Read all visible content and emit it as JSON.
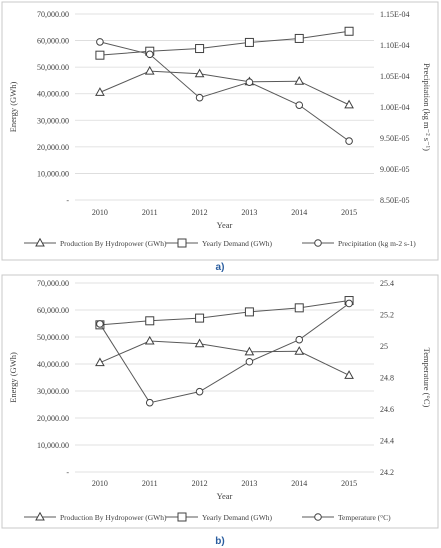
{
  "chart_data": [
    {
      "type": "line",
      "panel_label": "a)",
      "x": [
        "2010",
        "2011",
        "2012",
        "2013",
        "2014",
        "2015"
      ],
      "xlabel": "Year",
      "ylabel_left": "Energy (GWh)",
      "ylabel_right": "Precipitation (kg m⁻² s⁻¹)",
      "ylim_left": [
        0,
        70000
      ],
      "yticks_left": [
        "-",
        "10,000.00",
        "20,000.00",
        "30,000.00",
        "40,000.00",
        "50,000.00",
        "60,000.00",
        "70,000.00"
      ],
      "ylim_right": [
        8.5e-05,
        0.000115
      ],
      "yticks_right": [
        "8.50E-05",
        "9.00E-05",
        "9.50E-05",
        "1.00E-04",
        "1.05E-04",
        "1.10E-04",
        "1.15E-04"
      ],
      "grid": true,
      "legend_position": "bottom",
      "series": [
        {
          "name": "Production By Hydropower (GWh)",
          "marker": "triangle",
          "axis": "left",
          "values": [
            40500,
            48500,
            47500,
            44500,
            44700,
            35800
          ]
        },
        {
          "name": "Yearly Demand (GWh)",
          "marker": "square",
          "axis": "left",
          "values": [
            54500,
            56000,
            57000,
            59300,
            60800,
            63500
          ]
        },
        {
          "name": "Precipitation (kg m-2 s-1)",
          "marker": "circle",
          "axis": "right",
          "values": [
            0.0001105,
            0.0001085,
            0.0001015,
            0.000104,
            0.0001003,
            9.45e-05
          ]
        }
      ]
    },
    {
      "type": "line",
      "panel_label": "b)",
      "x": [
        "2010",
        "2011",
        "2012",
        "2013",
        "2014",
        "2015"
      ],
      "xlabel": "Year",
      "ylabel_left": "Energy (GWh)",
      "ylabel_right": "Temperature (°C)",
      "ylim_left": [
        0,
        70000
      ],
      "yticks_left": [
        "-",
        "10,000.00",
        "20,000.00",
        "30,000.00",
        "40,000.00",
        "50,000.00",
        "60,000.00",
        "70,000.00"
      ],
      "ylim_right": [
        24.2,
        25.4
      ],
      "yticks_right": [
        "24.2",
        "24.4",
        "24.6",
        "24.8",
        "25",
        "25.2",
        "25.4"
      ],
      "grid": true,
      "legend_position": "bottom",
      "series": [
        {
          "name": "Production By Hydropower (GWh)",
          "marker": "triangle",
          "axis": "left",
          "values": [
            40500,
            48500,
            47500,
            44500,
            44700,
            35800
          ]
        },
        {
          "name": "Yearly Demand (GWh)",
          "marker": "square",
          "axis": "left",
          "values": [
            54500,
            56000,
            57000,
            59300,
            60800,
            63500
          ]
        },
        {
          "name": "Temperature (°C)",
          "marker": "circle",
          "axis": "right",
          "values": [
            25.14,
            24.64,
            24.71,
            24.9,
            25.04,
            25.27
          ]
        }
      ]
    }
  ]
}
